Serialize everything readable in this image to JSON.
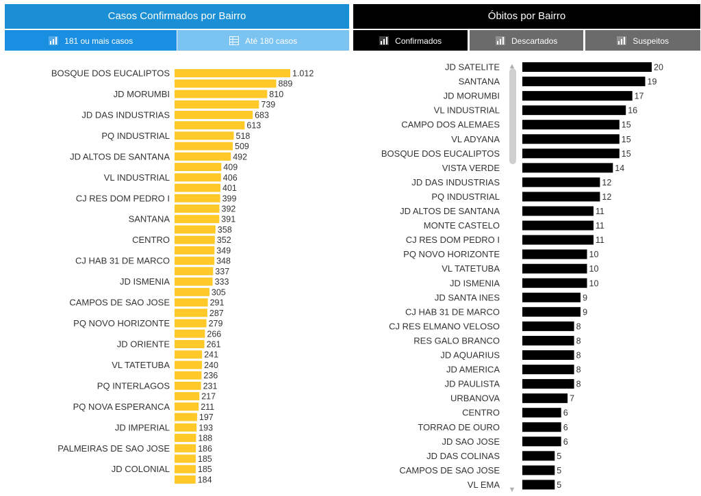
{
  "left": {
    "title": "Casos Confirmados por Bairro",
    "tabs": [
      {
        "label": "181 ou mais casos",
        "icon": "bar-chart-icon"
      },
      {
        "label": "Até 180 casos",
        "icon": "table-icon"
      }
    ]
  },
  "right": {
    "title": "Óbitos por Bairro",
    "tabs": [
      {
        "label": "Confirmados",
        "icon": "bar-chart-icon"
      },
      {
        "label": "Descartados",
        "icon": "bar-chart-icon"
      },
      {
        "label": "Suspeitos",
        "icon": "bar-chart-icon"
      }
    ]
  },
  "colors": {
    "left_bar": "#ffc929",
    "right_bar": "#000000",
    "left_header": "#1a8fd6",
    "right_header": "#000000"
  },
  "chart_data": [
    {
      "type": "bar",
      "orientation": "horizontal",
      "title": "Casos Confirmados por Bairro",
      "categories": [
        "BOSQUE DOS EUCALIPTOS",
        "",
        "JD MORUMBI",
        "",
        "JD DAS INDUSTRIAS",
        "",
        "PQ INDUSTRIAL",
        "",
        "JD ALTOS DE SANTANA",
        "",
        "VL INDUSTRIAL",
        "",
        "CJ RES DOM PEDRO I",
        "",
        "SANTANA",
        "",
        "CENTRO",
        "",
        "CJ HAB 31 DE MARCO",
        "",
        "JD ISMENIA",
        "",
        "CAMPOS DE SAO JOSE",
        "",
        "PQ NOVO HORIZONTE",
        "",
        "JD ORIENTE",
        "",
        "VL TATETUBA",
        "",
        "PQ INTERLAGOS",
        "",
        "PQ NOVA ESPERANCA",
        "",
        "JD IMPERIAL",
        "",
        "PALMEIRAS DE SAO JOSE",
        "",
        "JD COLONIAL",
        ""
      ],
      "values": [
        1012,
        889,
        810,
        739,
        683,
        613,
        518,
        509,
        492,
        409,
        406,
        401,
        399,
        392,
        391,
        358,
        352,
        349,
        348,
        337,
        333,
        305,
        291,
        287,
        279,
        266,
        261,
        241,
        240,
        236,
        231,
        217,
        211,
        197,
        193,
        188,
        186,
        185,
        185,
        184
      ],
      "value_labels": [
        "1.012",
        "889",
        "810",
        "739",
        "683",
        "613",
        "518",
        "509",
        "492",
        "409",
        "406",
        "401",
        "399",
        "392",
        "391",
        "358",
        "352",
        "349",
        "348",
        "337",
        "333",
        "305",
        "291",
        "287",
        "279",
        "266",
        "261",
        "241",
        "240",
        "236",
        "231",
        "217",
        "211",
        "197",
        "193",
        "188",
        "186",
        "185",
        "185",
        "184"
      ],
      "xlim": [
        0,
        1012
      ],
      "grid": false,
      "legend": "none"
    },
    {
      "type": "bar",
      "orientation": "horizontal",
      "title": "Óbitos por Bairro",
      "categories": [
        "JD SATELITE",
        "SANTANA",
        "JD MORUMBI",
        "VL INDUSTRIAL",
        "CAMPO DOS ALEMAES",
        "VL ADYANA",
        "BOSQUE DOS EUCALIPTOS",
        "VISTA VERDE",
        "JD DAS INDUSTRIAS",
        "PQ INDUSTRIAL",
        "JD ALTOS DE SANTANA",
        "MONTE CASTELO",
        "CJ RES DOM PEDRO I",
        "PQ NOVO HORIZONTE",
        "VL TATETUBA",
        "JD ISMENIA",
        "JD SANTA INES",
        "CJ HAB 31 DE MARCO",
        "CJ RES ELMANO VELOSO",
        "RES GALO BRANCO",
        "JD AQUARIUS",
        "JD AMERICA",
        "JD PAULISTA",
        "URBANOVA",
        "CENTRO",
        "TORRAO DE OURO",
        "JD SAO JOSE",
        "JD DAS COLINAS",
        "CAMPOS DE SAO JOSE",
        "VL EMA"
      ],
      "values": [
        20,
        19,
        17,
        16,
        15,
        15,
        15,
        14,
        12,
        12,
        11,
        11,
        11,
        10,
        10,
        10,
        9,
        9,
        8,
        8,
        8,
        8,
        8,
        7,
        6,
        6,
        6,
        5,
        5,
        5
      ],
      "value_labels": [
        "20",
        "19",
        "17",
        "16",
        "15",
        "15",
        "15",
        "14",
        "12",
        "12",
        "11",
        "11",
        "11",
        "10",
        "10",
        "10",
        "9",
        "9",
        "8",
        "8",
        "8",
        "8",
        "8",
        "7",
        "6",
        "6",
        "6",
        "5",
        "5",
        "5"
      ],
      "xlim": [
        0,
        20
      ],
      "grid": false,
      "legend": "none"
    }
  ]
}
